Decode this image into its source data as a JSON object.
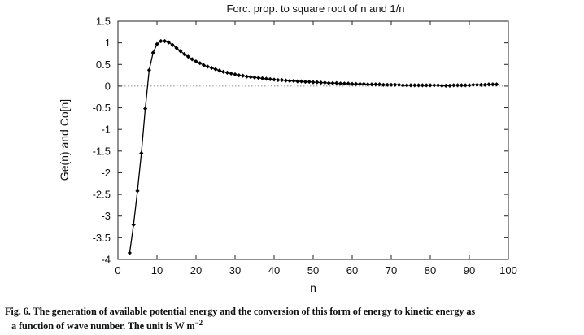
{
  "caption": {
    "line1": "Fig. 6. The generation of available potential energy and the conversion of this form of energy to kinetic energy as",
    "line2_text": "a function of wave number. The unit is W m",
    "line2_sup": "−2"
  },
  "chart_data": {
    "type": "line",
    "title": "Forc. prop. to square root of n and 1/n",
    "xlabel": "n",
    "ylabel": "Ge(n) and Co[n]",
    "xlim": [
      0,
      100
    ],
    "ylim": [
      -4,
      1.5
    ],
    "xticks": [
      0,
      10,
      20,
      30,
      40,
      50,
      60,
      70,
      80,
      90,
      100
    ],
    "yticks": [
      1.5,
      1,
      0.5,
      0,
      -0.5,
      -1,
      -1.5,
      -2,
      -2.5,
      -3,
      -3.5,
      -4
    ],
    "xtick_labels": [
      "0",
      "10",
      "20",
      "30",
      "40",
      "50",
      "60",
      "70",
      "80",
      "90",
      "100"
    ],
    "ytick_labels": [
      "1.5",
      "1",
      "0.5",
      "0",
      "-0.5",
      "-1",
      "-1.5",
      "-2",
      "-2.5",
      "-3",
      "-3.5",
      "-4"
    ],
    "zero_line": "dotted",
    "series": [
      {
        "name": "Ge(n) and Co[n]",
        "marker": "diamond",
        "x": [
          3,
          4,
          5,
          6,
          7,
          8,
          9,
          10,
          11,
          12,
          13,
          14,
          15,
          16,
          17,
          18,
          19,
          20,
          21,
          22,
          23,
          24,
          25,
          26,
          27,
          28,
          29,
          30,
          31,
          32,
          33,
          34,
          35,
          36,
          37,
          38,
          39,
          40,
          41,
          42,
          43,
          44,
          45,
          46,
          47,
          48,
          49,
          50,
          51,
          52,
          53,
          54,
          55,
          56,
          57,
          58,
          59,
          60,
          61,
          62,
          63,
          64,
          65,
          66,
          67,
          68,
          69,
          70,
          71,
          72,
          73,
          74,
          75,
          76,
          77,
          78,
          79,
          80,
          81,
          82,
          83,
          84,
          85,
          86,
          87,
          88,
          89,
          90,
          91,
          92,
          93,
          94,
          95,
          96,
          97
        ],
        "y": [
          -3.85,
          -3.2,
          -2.42,
          -1.55,
          -0.52,
          0.37,
          0.77,
          0.97,
          1.04,
          1.04,
          1.01,
          0.95,
          0.88,
          0.81,
          0.74,
          0.68,
          0.62,
          0.57,
          0.53,
          0.48,
          0.45,
          0.42,
          0.39,
          0.36,
          0.33,
          0.31,
          0.29,
          0.27,
          0.25,
          0.24,
          0.22,
          0.21,
          0.2,
          0.19,
          0.18,
          0.17,
          0.16,
          0.15,
          0.14,
          0.14,
          0.13,
          0.12,
          0.12,
          0.11,
          0.11,
          0.1,
          0.1,
          0.09,
          0.09,
          0.08,
          0.08,
          0.07,
          0.07,
          0.07,
          0.06,
          0.06,
          0.06,
          0.05,
          0.05,
          0.05,
          0.05,
          0.04,
          0.04,
          0.04,
          0.04,
          0.03,
          0.03,
          0.03,
          0.03,
          0.03,
          0.02,
          0.02,
          0.02,
          0.02,
          0.02,
          0.02,
          0.02,
          0.02,
          0.02,
          0.02,
          0.01,
          0.01,
          0.01,
          0.02,
          0.02,
          0.02,
          0.02,
          0.02,
          0.03,
          0.03,
          0.03,
          0.03,
          0.04,
          0.04,
          0.04
        ]
      }
    ]
  }
}
